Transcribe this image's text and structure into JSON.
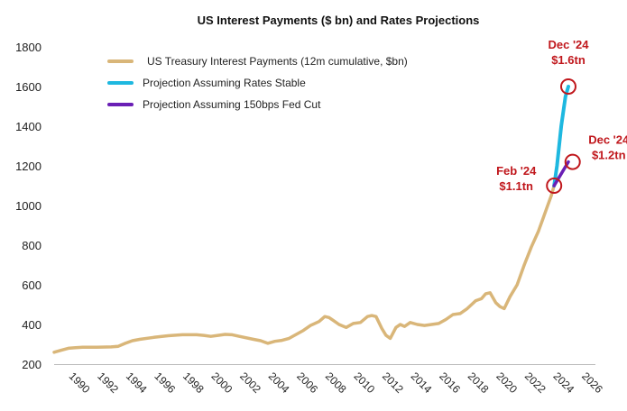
{
  "chart_data": {
    "type": "line",
    "title": "US Interest Payments ($ bn) and Rates Projections",
    "xlabel": "",
    "ylabel": "",
    "xlim": [
      1989,
      2027
    ],
    "ylim": [
      200,
      1800
    ],
    "y_ticks": [
      200,
      400,
      600,
      800,
      1000,
      1200,
      1400,
      1600,
      1800
    ],
    "x_tick_labels": [
      "1990",
      "1992",
      "1994",
      "1996",
      "1998",
      "2000",
      "2002",
      "2004",
      "2006",
      "2008",
      "2010",
      "2012",
      "2014",
      "2016",
      "2018",
      "2020",
      "2022",
      "2024",
      "2026"
    ],
    "grid": false,
    "legend_position": "top-left",
    "series": [
      {
        "name": "US Treasury Interest Payments (12m cumulative, $bn)",
        "color": "#d9b679",
        "x": [
          1989.0,
          1989.5,
          1990.0,
          1990.5,
          1991.0,
          1992.0,
          1993.0,
          1993.5,
          1994.0,
          1994.5,
          1995.0,
          1996.0,
          1997.0,
          1998.0,
          1999.0,
          1999.5,
          2000.0,
          2000.5,
          2001.0,
          2001.5,
          2002.0,
          2003.0,
          2003.5,
          2004.0,
          2004.5,
          2005.0,
          2005.5,
          2006.0,
          2006.5,
          2007.0,
          2007.3,
          2007.6,
          2008.0,
          2008.3,
          2008.6,
          2009.0,
          2009.5,
          2010.0,
          2010.5,
          2011.0,
          2011.3,
          2011.6,
          2012.0,
          2012.3,
          2012.6,
          2013.0,
          2013.3,
          2013.6,
          2014.0,
          2014.5,
          2015.0,
          2015.5,
          2016.0,
          2016.5,
          2017.0,
          2017.5,
          2018.0,
          2018.3,
          2018.6,
          2019.0,
          2019.3,
          2019.6,
          2020.0,
          2020.3,
          2020.6,
          2021.0,
          2021.5,
          2022.0,
          2022.5,
          2023.0,
          2023.3,
          2023.6,
          2023.9,
          2024.1
        ],
        "values": [
          260,
          270,
          280,
          283,
          285,
          285,
          287,
          290,
          305,
          318,
          325,
          335,
          343,
          348,
          348,
          345,
          340,
          345,
          350,
          348,
          340,
          325,
          318,
          305,
          315,
          320,
          330,
          350,
          370,
          395,
          405,
          415,
          440,
          435,
          420,
          400,
          385,
          405,
          410,
          440,
          445,
          440,
          380,
          345,
          330,
          385,
          400,
          390,
          410,
          400,
          395,
          400,
          405,
          425,
          450,
          455,
          480,
          500,
          520,
          530,
          555,
          560,
          510,
          490,
          480,
          540,
          600,
          700,
          790,
          870,
          930,
          990,
          1050,
          1100
        ]
      },
      {
        "name": "Projection Assuming Rates Stable",
        "color": "#1eb8e0",
        "x": [
          2024.1,
          2024.3,
          2024.6,
          2024.9,
          2025.1
        ],
        "values": [
          1100,
          1200,
          1400,
          1550,
          1600
        ]
      },
      {
        "name": "Projection Assuming 150bps Fed Cut",
        "color": "#6a1fb5",
        "x": [
          2024.1,
          2024.6,
          2025.1
        ],
        "values": [
          1100,
          1160,
          1220
        ]
      }
    ],
    "annotations": [
      {
        "lines": [
          "Dec '24",
          "$1.6tn"
        ],
        "x": 2025.1,
        "y": 1600
      },
      {
        "lines": [
          "Dec '24",
          "$1.2tn"
        ],
        "x": 2025.4,
        "y": 1220
      },
      {
        "lines": [
          "Feb '24",
          "$1.1tn"
        ],
        "x": 2024.1,
        "y": 1100
      }
    ],
    "annotation_color": "#c0171c"
  }
}
